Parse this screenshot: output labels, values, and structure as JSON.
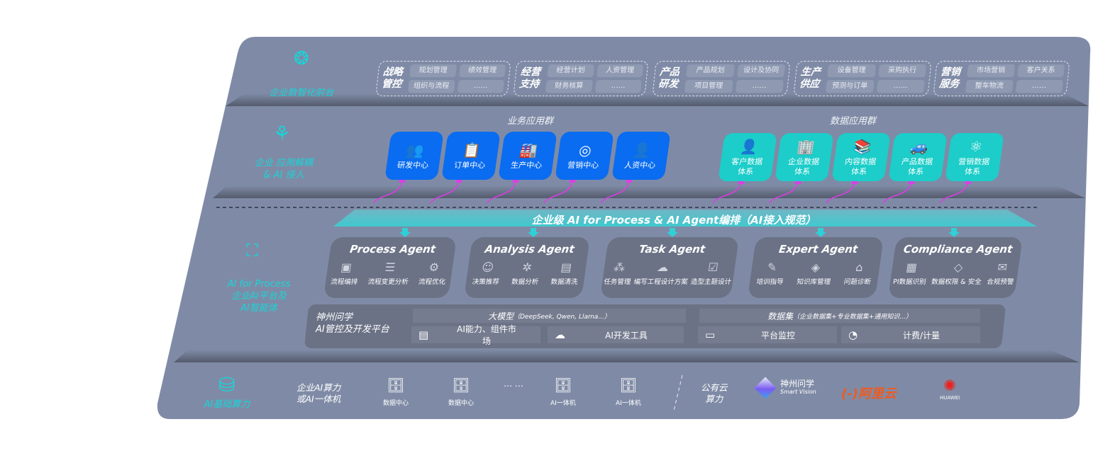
{
  "colors": {
    "panel": "#7f8ba6",
    "accent_cyan": "#19d4d8",
    "business_blue": "#0a6cf0",
    "data_teal": "#1ccdc9",
    "arrow_magenta": "#e03ce8",
    "agent_box": "#6b7286"
  },
  "front": {
    "label": "企业数智化前台",
    "icon": "brain-icon",
    "groups": [
      {
        "title": [
          "战略",
          "管控"
        ],
        "items": [
          "规划管理",
          "绩效管理",
          "组织与流程",
          "……"
        ]
      },
      {
        "title": [
          "经营",
          "支持"
        ],
        "items": [
          "经营计划",
          "人资管理",
          "财务核算",
          "……"
        ]
      },
      {
        "title": [
          "产品",
          "研发"
        ],
        "items": [
          "产品规划",
          "设计及协同",
          "项目管理",
          "……"
        ]
      },
      {
        "title": [
          "生产",
          "供应"
        ],
        "items": [
          "设备管理",
          "采购执行",
          "预测与订单",
          "……"
        ]
      },
      {
        "title": [
          "营销",
          "服务"
        ],
        "items": [
          "市场营销",
          "客户关系",
          "整车物流",
          "……"
        ]
      }
    ]
  },
  "apps": {
    "label": [
      "企业 应用解耦",
      "& AI 侵入"
    ],
    "icon": "molecule-icon",
    "business_title": "业务应用群",
    "business": [
      {
        "label": "研发中心",
        "icon": "users-icon",
        "glyph": "👥"
      },
      {
        "label": "订单中心",
        "icon": "clipboard-icon",
        "glyph": "📋"
      },
      {
        "label": "生产中心",
        "icon": "factory-icon",
        "glyph": "🏭"
      },
      {
        "label": "营销中心",
        "icon": "target-icon",
        "glyph": "◎"
      },
      {
        "label": "人资中心",
        "icon": "person-icon",
        "glyph": "👤"
      }
    ],
    "data_title": "数据应用群",
    "data": [
      {
        "label": [
          "客户数据",
          "体系"
        ],
        "icon": "user-icon",
        "glyph": "👤"
      },
      {
        "label": [
          "企业数据",
          "体系"
        ],
        "icon": "building-icon",
        "glyph": "🏢"
      },
      {
        "label": [
          "内容数据",
          "体系"
        ],
        "icon": "books-icon",
        "glyph": "📚"
      },
      {
        "label": [
          "产品数据",
          "体系"
        ],
        "icon": "car-icon",
        "glyph": "🚙"
      },
      {
        "label": [
          "营销数据",
          "体系"
        ],
        "icon": "atom-icon",
        "glyph": "⚛"
      }
    ]
  },
  "ai": {
    "label": [
      "AI for Process",
      "企业AI平台及",
      "AI智能体"
    ],
    "icon": "face-scan-icon",
    "banner": "企业级 AI for Process & AI Agent编排（AI接入规范）",
    "agents": [
      {
        "title": "Process Agent",
        "items": [
          {
            "label": "流程编排",
            "glyph": "▣"
          },
          {
            "label": "流程变更分析",
            "glyph": "☰"
          },
          {
            "label": "流程优化",
            "glyph": "⚙"
          }
        ]
      },
      {
        "title": "Analysis Agent",
        "items": [
          {
            "label": "决策推荐",
            "glyph": "☺"
          },
          {
            "label": "数据分析",
            "glyph": "✲"
          },
          {
            "label": "数据清洗",
            "glyph": "▤"
          }
        ]
      },
      {
        "title": "Task Agent",
        "items": [
          {
            "label": "任务管理",
            "glyph": "⁂"
          },
          {
            "label": "编写工程设计方案",
            "glyph": "☁"
          },
          {
            "label": "造型主题设计",
            "glyph": "☑"
          }
        ]
      },
      {
        "title": "Expert Agent",
        "items": [
          {
            "label": "培训指导",
            "glyph": "✎"
          },
          {
            "label": "知识库管理",
            "glyph": "◈"
          },
          {
            "label": "问题诊断",
            "glyph": "⌂"
          }
        ]
      },
      {
        "title": "Compliance Agent",
        "items": [
          {
            "label": "PI数据识别",
            "glyph": "▦"
          },
          {
            "label": "数据权限 & 安全",
            "glyph": "◇"
          },
          {
            "label": "合规预警",
            "glyph": "✉"
          }
        ]
      }
    ],
    "platform": {
      "title": [
        "神州问学",
        "AI管控及开发平台"
      ],
      "model": {
        "label": "大模型",
        "note": "（DeepSeek, Qwen, Llama...）"
      },
      "dataset": {
        "label": "数据集",
        "note": "（企业数据集+专业数据集+通用知识...）"
      },
      "tools": [
        {
          "label": "AI能力、组件市场",
          "icon": "market-icon",
          "glyph": "▤"
        },
        {
          "label": "AI开发工具",
          "icon": "dev-tools-icon",
          "glyph": "☁"
        },
        {
          "label": "平台监控",
          "icon": "monitor-icon",
          "glyph": "▭"
        },
        {
          "label": "计费/计量",
          "icon": "gauge-icon",
          "glyph": "◔"
        }
      ]
    }
  },
  "infra": {
    "label": "AI基础算力",
    "icon": "database-icon",
    "local_label": [
      "企业AI算力",
      "或AI一体机"
    ],
    "nodes": [
      "数据中心",
      "数据中心",
      "AI一体机",
      "AI一体机"
    ],
    "ellipsis": "… …",
    "cloud_label": [
      "公有云",
      "算力"
    ],
    "vendors": [
      {
        "name": "神州问学",
        "sub": "Smart Vision"
      },
      {
        "name": "阿里云",
        "mark": "(-)"
      },
      {
        "name": "HUAWEI"
      }
    ]
  }
}
